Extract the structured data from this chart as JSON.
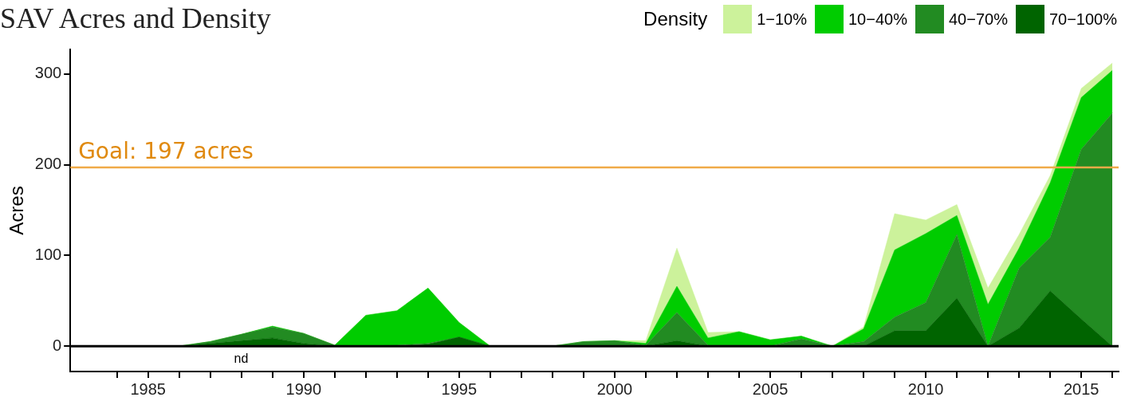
{
  "chart_data": {
    "type": "area",
    "title": "SAV Acres and Density",
    "ylabel": "Acres",
    "legend_title": "Density",
    "legend": "top right",
    "stacked": true,
    "grid": false,
    "x": [
      1984,
      1985,
      1986,
      1987,
      1988,
      1989,
      1990,
      1991,
      1992,
      1993,
      1994,
      1995,
      1996,
      1997,
      1998,
      1999,
      2000,
      2001,
      2002,
      2003,
      2004,
      2005,
      2006,
      2007,
      2008,
      2009,
      2010,
      2011,
      2012,
      2013,
      2014,
      2015,
      2016
    ],
    "xlim": [
      1982.5,
      2016.2
    ],
    "xticks": [
      {
        "value": 1984,
        "label": null
      },
      1985,
      {
        "value": 1986,
        "label": null
      },
      {
        "value": 1987,
        "label": null
      },
      {
        "value": 1988,
        "label": null
      },
      {
        "value": 1989,
        "label": null
      },
      1990,
      {
        "value": 1991,
        "label": null
      },
      {
        "value": 1992,
        "label": null
      },
      {
        "value": 1993,
        "label": null
      },
      {
        "value": 1994,
        "label": null
      },
      1995,
      {
        "value": 1996,
        "label": null
      },
      {
        "value": 1997,
        "label": null
      },
      {
        "value": 1998,
        "label": null
      },
      {
        "value": 1999,
        "label": null
      },
      2000,
      {
        "value": 2001,
        "label": null
      },
      {
        "value": 2002,
        "label": null
      },
      {
        "value": 2003,
        "label": null
      },
      {
        "value": 2004,
        "label": null
      },
      2005,
      {
        "value": 2006,
        "label": null
      },
      {
        "value": 2007,
        "label": null
      },
      {
        "value": 2008,
        "label": null
      },
      {
        "value": 2009,
        "label": null
      },
      2010,
      {
        "value": 2011,
        "label": null
      },
      {
        "value": 2012,
        "label": null
      },
      {
        "value": 2013,
        "label": null
      },
      {
        "value": 2014,
        "label": null
      },
      2015,
      {
        "value": 2016,
        "label": null
      }
    ],
    "ylim": [
      -28,
      327
    ],
    "yticks": [
      0,
      100,
      200,
      300
    ],
    "series": [
      {
        "name": "70−100%",
        "color": "#006400",
        "values": [
          0,
          0,
          0,
          3,
          6,
          9,
          3,
          0,
          0,
          0,
          2,
          10,
          0,
          0,
          0,
          0,
          0,
          0,
          6,
          0,
          0,
          0,
          0,
          0,
          0,
          17,
          17,
          53,
          0,
          20,
          61,
          30,
          0
        ]
      },
      {
        "name": "40−70%",
        "color": "#228b22",
        "values": [
          0,
          0,
          0,
          2,
          7,
          12,
          11,
          1,
          0,
          1,
          1,
          0,
          0,
          0,
          0,
          5,
          6,
          1,
          31,
          1,
          1,
          0,
          8,
          0,
          5,
          15,
          31,
          70,
          0,
          66,
          59,
          187,
          257
        ]
      },
      {
        "name": "10−40%",
        "color": "#00cc00",
        "values": [
          0,
          0,
          0,
          0,
          0,
          1,
          0,
          0,
          34,
          38,
          61,
          16,
          0,
          0,
          0,
          0,
          0,
          2,
          29,
          8,
          15,
          7,
          3,
          0,
          14,
          74,
          76,
          21,
          46,
          22,
          60,
          57,
          47
        ]
      },
      {
        "name": "1−10%",
        "color": "#ccf29b",
        "values": [
          0,
          0,
          0,
          0,
          0,
          0,
          0,
          0,
          0,
          0,
          0,
          0,
          0,
          0,
          0,
          0,
          0,
          3,
          42,
          6,
          0,
          0,
          0,
          0,
          2,
          40,
          15,
          12,
          18,
          15,
          8,
          10,
          8
        ]
      }
    ],
    "ref_lines": [
      {
        "axis": "y",
        "value": 197,
        "label": "Goal: 197 acres",
        "color": "#f0aa48"
      },
      {
        "axis": "y",
        "value": 0,
        "color": "#000000"
      }
    ],
    "annotations": [
      "nd"
    ]
  }
}
